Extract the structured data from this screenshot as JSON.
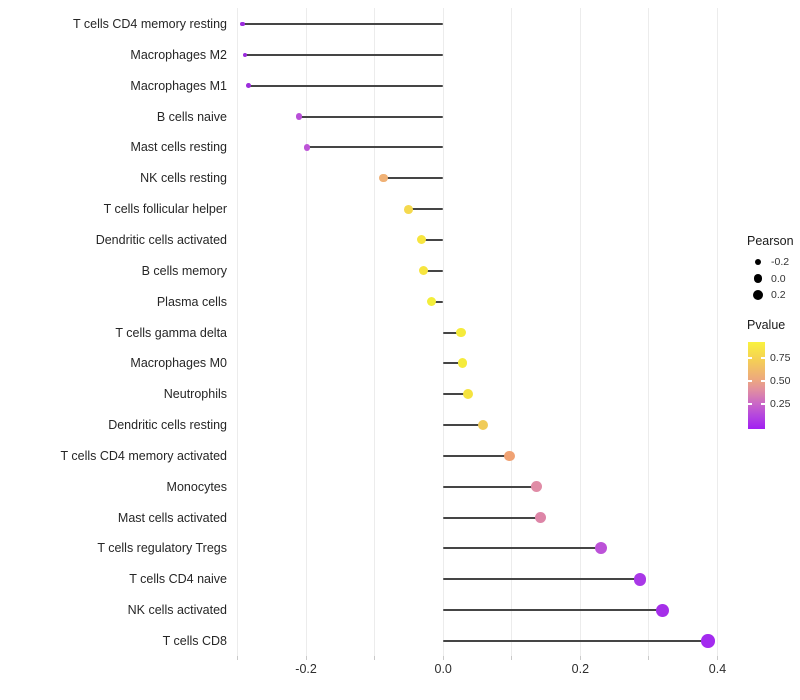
{
  "chart_data": {
    "type": "lollipop",
    "title": "",
    "xlabel": "",
    "ylabel": "",
    "x_tick_labels": [
      "-0.2",
      "0.0",
      "0.2",
      "0.4"
    ],
    "x_tick_values": [
      -0.2,
      0.0,
      0.2,
      0.4
    ],
    "gridline_values": [
      -0.3,
      -0.2,
      -0.1,
      0.0,
      0.1,
      0.2,
      0.3,
      0.4
    ],
    "xlim": [
      -0.3066,
      0.4066
    ],
    "baseline": 0.0,
    "grid_on": true,
    "points": [
      {
        "label": "T cells CD4 memory resting",
        "pearson": -0.293,
        "pvalue": 0.1,
        "color": "#9B2BDD"
      },
      {
        "label": "Macrophages M2",
        "pearson": -0.289,
        "pvalue": 0.1,
        "color": "#9B2BDD"
      },
      {
        "label": "Macrophages M1",
        "pearson": -0.284,
        "pvalue": 0.11,
        "color": "#9C2EDC"
      },
      {
        "label": "B cells naive",
        "pearson": -0.21,
        "pvalue": 0.2,
        "color": "#B94FD8"
      },
      {
        "label": "Mast cells resting",
        "pearson": -0.199,
        "pvalue": 0.22,
        "color": "#BD54D7"
      },
      {
        "label": "NK cells resting",
        "pearson": -0.087,
        "pvalue": 0.62,
        "color": "#F0B175"
      },
      {
        "label": "T cells follicular helper",
        "pearson": -0.051,
        "pvalue": 0.78,
        "color": "#F5D94E"
      },
      {
        "label": "Dendritic cells activated",
        "pearson": -0.031,
        "pvalue": 0.84,
        "color": "#F7E53F"
      },
      {
        "label": "B cells memory",
        "pearson": -0.029,
        "pvalue": 0.84,
        "color": "#F7E53F"
      },
      {
        "label": "Plasma cells",
        "pearson": -0.017,
        "pvalue": 0.9,
        "color": "#F3EE3B"
      },
      {
        "label": "T cells gamma delta",
        "pearson": 0.026,
        "pvalue": 0.86,
        "color": "#F5EB3C"
      },
      {
        "label": "Macrophages M0",
        "pearson": 0.028,
        "pvalue": 0.86,
        "color": "#F5EB3C"
      },
      {
        "label": "Neutrophils",
        "pearson": 0.036,
        "pvalue": 0.82,
        "color": "#F5E33F"
      },
      {
        "label": "Dendritic cells resting",
        "pearson": 0.058,
        "pvalue": 0.7,
        "color": "#F0CB58"
      },
      {
        "label": "T cells CD4 memory activated",
        "pearson": 0.097,
        "pvalue": 0.56,
        "color": "#F0A273"
      },
      {
        "label": "Monocytes",
        "pearson": 0.136,
        "pvalue": 0.44,
        "color": "#E08CA6"
      },
      {
        "label": "Mast cells activated",
        "pearson": 0.142,
        "pvalue": 0.42,
        "color": "#DD85A7"
      },
      {
        "label": "T cells regulatory  Tregs",
        "pearson": 0.23,
        "pvalue": 0.18,
        "color": "#BC52D8"
      },
      {
        "label": "T cells CD4 naive",
        "pearson": 0.287,
        "pvalue": 0.09,
        "color": "#A938E7"
      },
      {
        "label": "NK cells activated",
        "pearson": 0.32,
        "pvalue": 0.07,
        "color": "#A52FE9"
      },
      {
        "label": "T cells CD8",
        "pearson": 0.386,
        "pvalue": 0.03,
        "color": "#A32BEF"
      }
    ],
    "legend": {
      "size": {
        "title": "Pearson",
        "entries": [
          {
            "label": "-0.2",
            "value": -0.2
          },
          {
            "label": "0.0",
            "value": 0.0
          },
          {
            "label": "0.2",
            "value": 0.2
          }
        ],
        "dot_color": "#000000"
      },
      "color": {
        "title": "Pvalue",
        "ticks": [
          {
            "label": "0.75",
            "frac_from_top": 0.18
          },
          {
            "label": "0.50",
            "frac_from_top": 0.45
          },
          {
            "label": "0.25",
            "frac_from_top": 0.71
          }
        ],
        "gradient_bottom_to_top": [
          {
            "pos": 0.0,
            "color": "#A21FF2"
          },
          {
            "pos": 0.15,
            "color": "#B445DF"
          },
          {
            "pos": 0.3,
            "color": "#CB69C5"
          },
          {
            "pos": 0.45,
            "color": "#E18FA0"
          },
          {
            "pos": 0.57,
            "color": "#EDA87E"
          },
          {
            "pos": 0.8,
            "color": "#F5D054"
          },
          {
            "pos": 1.0,
            "color": "#F9F23E"
          }
        ]
      }
    },
    "style": {
      "segment_color": "#454545",
      "gridline_color": "#ececec",
      "background": "#ffffff"
    }
  }
}
